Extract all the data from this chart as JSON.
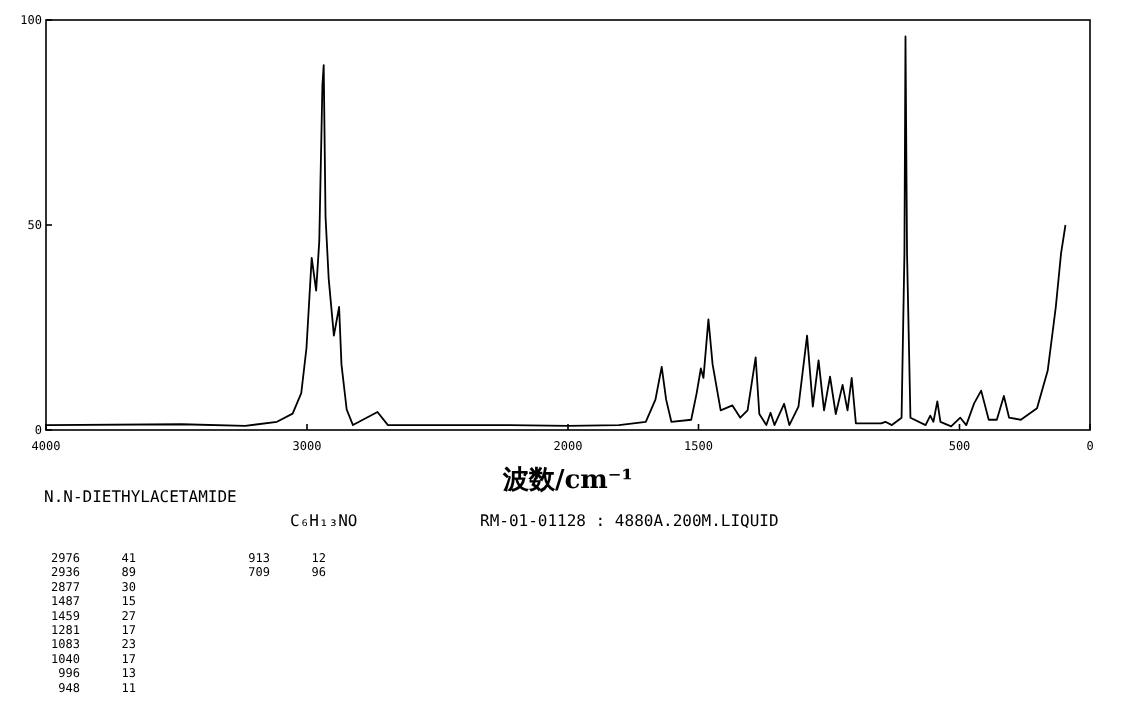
{
  "chart_data": {
    "type": "line",
    "xlabel": "波数/cm⁻¹",
    "xlim": [
      4000,
      0
    ],
    "xticks": [
      4000,
      3000,
      2000,
      1500,
      500,
      0
    ],
    "ylim": [
      0,
      100
    ],
    "yticks": [
      0,
      50,
      100
    ],
    "grid": false,
    "line_style": "solid",
    "series": [
      {
        "color": "#000000",
        "x": [
          4000,
          3480,
          3237,
          3115,
          3055,
          3022,
          3002,
          2982,
          2965,
          2953,
          2941,
          2936,
          2929,
          2917,
          2897,
          2877,
          2868,
          2848,
          2824,
          2730,
          2690,
          2223,
          2000,
          1805,
          1702,
          1665,
          1641,
          1624,
          1604,
          1528,
          1507,
          1491,
          1481,
          1462,
          1446,
          1415,
          1370,
          1340,
          1312,
          1281,
          1267,
          1240,
          1224,
          1209,
          1172,
          1152,
          1117,
          1084,
          1062,
          1040,
          1019,
          996,
          974,
          948,
          929,
          913,
          897,
          800,
          784,
          759,
          722,
          711,
          707,
          701,
          688,
          630,
          612,
          600,
          585,
          573,
          532,
          497,
          474,
          444,
          417,
          388,
          357,
          330,
          310,
          265,
          203,
          162,
          131,
          111,
          94
        ],
        "values": [
          1.2,
          1.4,
          1,
          2,
          4,
          9,
          20,
          42,
          34,
          46,
          84,
          89,
          52,
          37,
          23,
          30,
          16,
          5,
          1.2,
          4.4,
          1.2,
          1.2,
          1,
          1.2,
          2,
          7.4,
          15.4,
          7.4,
          2,
          2.5,
          9,
          15,
          12.7,
          27,
          16,
          4.8,
          6,
          3,
          4.8,
          17.7,
          3.9,
          1.2,
          4.2,
          1.2,
          6.4,
          1.2,
          5.7,
          23,
          5.7,
          17,
          4.8,
          13,
          3.9,
          11,
          4.8,
          12.7,
          1.6,
          1.6,
          2,
          1.2,
          3,
          43,
          96,
          43,
          3,
          1.2,
          3.5,
          2,
          7,
          2,
          0.9,
          3,
          1.2,
          6.5,
          9.6,
          2.5,
          2.5,
          8.3,
          3,
          2.5,
          5.3,
          14.5,
          30,
          43,
          50
        ]
      }
    ],
    "annotations": [
      "N.N-DIETHYLACETAMIDE",
      "C₆H₁₃NO",
      "RM-01-01128 : 4880A.200M.LIQUID",
      "2976 41",
      "2936 89",
      "2877 30",
      "1487 15",
      "1459 27",
      "1281 17",
      "1083 23",
      "1040 17",
      "996 13",
      "948 11",
      "913 12",
      "709 96"
    ]
  }
}
